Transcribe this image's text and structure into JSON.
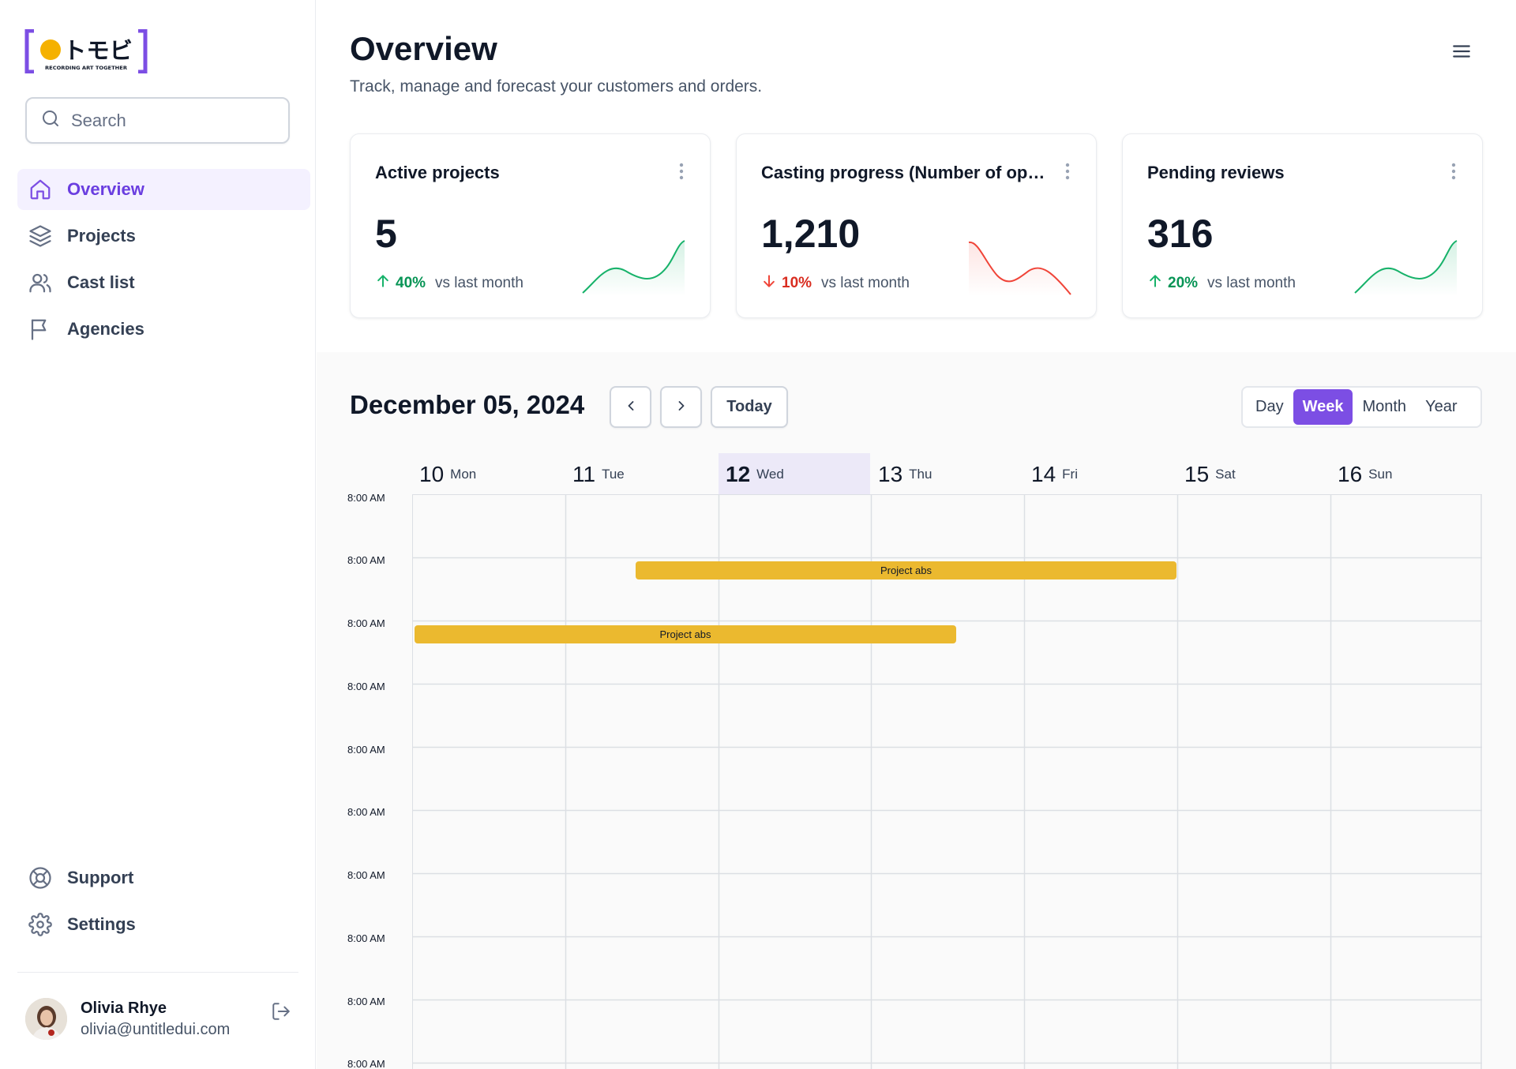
{
  "brand": {
    "name": "トモビ",
    "tagline": "RECORDING ART TOGETHER",
    "accent": "#7c4ee4",
    "dot_color": "#f5b100"
  },
  "search": {
    "placeholder": "Search",
    "icon": "search-icon"
  },
  "sidebar": {
    "items": [
      {
        "label": "Overview",
        "icon": "home-icon",
        "active": true
      },
      {
        "label": "Projects",
        "icon": "layers-icon"
      },
      {
        "label": "Cast list",
        "icon": "users-icon"
      },
      {
        "label": "Agencies",
        "icon": "flag-icon"
      }
    ],
    "bottom": [
      {
        "label": "Support",
        "icon": "lifebuoy-icon"
      },
      {
        "label": "Settings",
        "icon": "gear-icon"
      }
    ]
  },
  "user": {
    "name": "Olivia Rhye",
    "email": "olivia@untitledui.com"
  },
  "header": {
    "title": "Overview",
    "subtitle": "Track, manage and forecast your customers and orders."
  },
  "metrics": [
    {
      "title": "Active projects",
      "value": "5",
      "delta": "40%",
      "direction": "up",
      "compare": "vs last month",
      "color": "#17b26a"
    },
    {
      "title": "Casting progress (Number of open roles)",
      "value": "1,210",
      "delta": "10%",
      "direction": "down",
      "compare": "vs last month",
      "color": "#f04438"
    },
    {
      "title": "Pending reviews",
      "value": "316",
      "delta": "20%",
      "direction": "up",
      "compare": "vs last month",
      "color": "#17b26a"
    }
  ],
  "calendar": {
    "date": "December 05, 2024",
    "today_label": "Today",
    "views": [
      "Day",
      "Week",
      "Month",
      "Year"
    ],
    "active_view": "Week",
    "days": [
      {
        "num": "10",
        "name": "Mon"
      },
      {
        "num": "11",
        "name": "Tue"
      },
      {
        "num": "12",
        "name": "Wed",
        "active": true
      },
      {
        "num": "13",
        "name": "Thu"
      },
      {
        "num": "14",
        "name": "Fri"
      },
      {
        "num": "15",
        "name": "Sat"
      },
      {
        "num": "16",
        "name": "Sun"
      }
    ],
    "times": [
      "8:00 AM",
      "8:00 AM",
      "8:00 AM",
      "8:00 AM",
      "8:00 AM",
      "8:00 AM",
      "8:00 AM",
      "8:00 AM",
      "8:00 AM",
      "8:00 AM"
    ],
    "events": [
      {
        "title": "Project abs",
        "color": "#ebb92f"
      },
      {
        "title": "Project abs",
        "color": "#ebb92f"
      }
    ]
  }
}
